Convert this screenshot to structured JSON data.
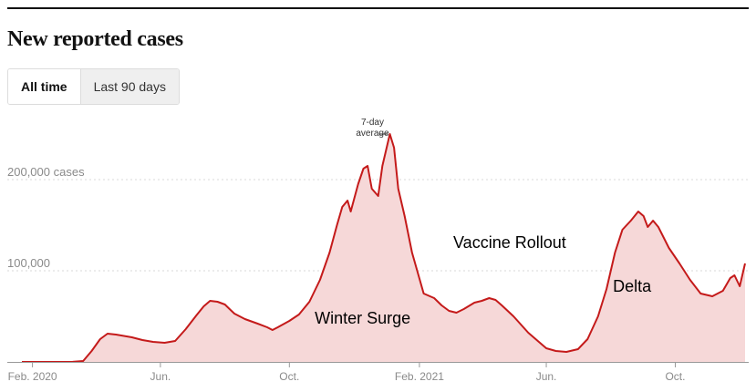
{
  "header": {
    "title": "New reported cases"
  },
  "toggle": {
    "options": [
      "All time",
      "Last 90 days"
    ],
    "active": "All time"
  },
  "colors": {
    "line": "#c41a1a",
    "area": "#f6d8d8",
    "grid": "#d9d9d9",
    "axis": "#999999",
    "label": "#8a8a8a"
  },
  "chart_data": {
    "type": "area",
    "title": "New reported cases",
    "series": [
      {
        "x": [
          "2020-01-22",
          "2020-02-15",
          "2020-03-01",
          "2020-03-10",
          "2020-03-20",
          "2020-03-28",
          "2020-04-05",
          "2020-04-12",
          "2020-04-20",
          "2020-04-25",
          "2020-05-05",
          "2020-05-15",
          "2020-05-25",
          "2020-06-05",
          "2020-06-15",
          "2020-06-25",
          "2020-07-05",
          "2020-07-12",
          "2020-07-18",
          "2020-07-25",
          "2020-08-01",
          "2020-08-10",
          "2020-08-20",
          "2020-09-01",
          "2020-09-10",
          "2020-09-15",
          "2020-09-20",
          "2020-10-01",
          "2020-10-10",
          "2020-10-20",
          "2020-10-30",
          "2020-11-08",
          "2020-11-15",
          "2020-11-20",
          "2020-11-25",
          "2020-11-28",
          "2020-12-05",
          "2020-12-10",
          "2020-12-14",
          "2020-12-18",
          "2020-12-24",
          "2020-12-28",
          "2021-01-04",
          "2021-01-08",
          "2021-01-12",
          "2021-01-18",
          "2021-01-25",
          "2021-02-05",
          "2021-02-15",
          "2021-02-22",
          "2021-03-01",
          "2021-03-08",
          "2021-03-15",
          "2021-03-25",
          "2021-04-01",
          "2021-04-08",
          "2021-04-14",
          "2021-04-20",
          "2021-05-01",
          "2021-05-15",
          "2021-06-01",
          "2021-06-10",
          "2021-06-20",
          "2021-07-01",
          "2021-07-10",
          "2021-07-20",
          "2021-07-28",
          "2021-08-05",
          "2021-08-12",
          "2021-08-20",
          "2021-08-27",
          "2021-09-01",
          "2021-09-05",
          "2021-09-10",
          "2021-09-15",
          "2021-09-25",
          "2021-10-05",
          "2021-10-15",
          "2021-10-25",
          "2021-11-05",
          "2021-11-15",
          "2021-11-22",
          "2021-11-26",
          "2021-12-01",
          "2021-12-06"
        ],
        "y": [
          0,
          0,
          0,
          100,
          1000,
          12000,
          25000,
          31000,
          30000,
          29000,
          27000,
          24000,
          22000,
          21000,
          23000,
          36000,
          51000,
          61000,
          67000,
          66000,
          63000,
          53000,
          47000,
          42000,
          38000,
          35000,
          38000,
          45000,
          52000,
          66000,
          90000,
          120000,
          150000,
          170000,
          177000,
          165000,
          195000,
          212000,
          215000,
          190000,
          182000,
          215000,
          250000,
          235000,
          190000,
          160000,
          120000,
          75000,
          70000,
          62000,
          56000,
          54000,
          58000,
          65000,
          67000,
          70000,
          68000,
          62000,
          50000,
          32000,
          15000,
          12000,
          11000,
          14000,
          25000,
          50000,
          80000,
          120000,
          145000,
          155000,
          165000,
          160000,
          148000,
          155000,
          148000,
          125000,
          108000,
          90000,
          75000,
          72000,
          78000,
          92000,
          95000,
          83000,
          108000
        ]
      }
    ],
    "y_ticks": [
      {
        "value": 100000,
        "label": "100,000"
      },
      {
        "value": 200000,
        "label": "200,000 cases"
      }
    ],
    "x_ticks": [
      {
        "date": "2020-02-01",
        "label": "Feb. 2020"
      },
      {
        "date": "2020-06-01",
        "label": "Jun."
      },
      {
        "date": "2020-10-01",
        "label": "Oct."
      },
      {
        "date": "2021-02-01",
        "label": "Feb. 2021"
      },
      {
        "date": "2021-06-01",
        "label": "Jun."
      },
      {
        "date": "2021-10-01",
        "label": "Oct."
      }
    ],
    "ylim": [
      0,
      260000
    ],
    "xlim": [
      "2020-01-22",
      "2021-12-06"
    ],
    "grid": true,
    "annotations": [
      {
        "text": "Winter Surge",
        "date": "2020-10-25",
        "value": 42000
      },
      {
        "text": "Vaccine Rollout",
        "date": "2021-03-05",
        "value": 125000
      },
      {
        "text": "Delta",
        "date": "2021-08-03",
        "value": 77000
      }
    ],
    "peak_callout": {
      "lines": [
        "7-day",
        "average"
      ],
      "date": "2021-01-04",
      "value": 250000
    }
  }
}
